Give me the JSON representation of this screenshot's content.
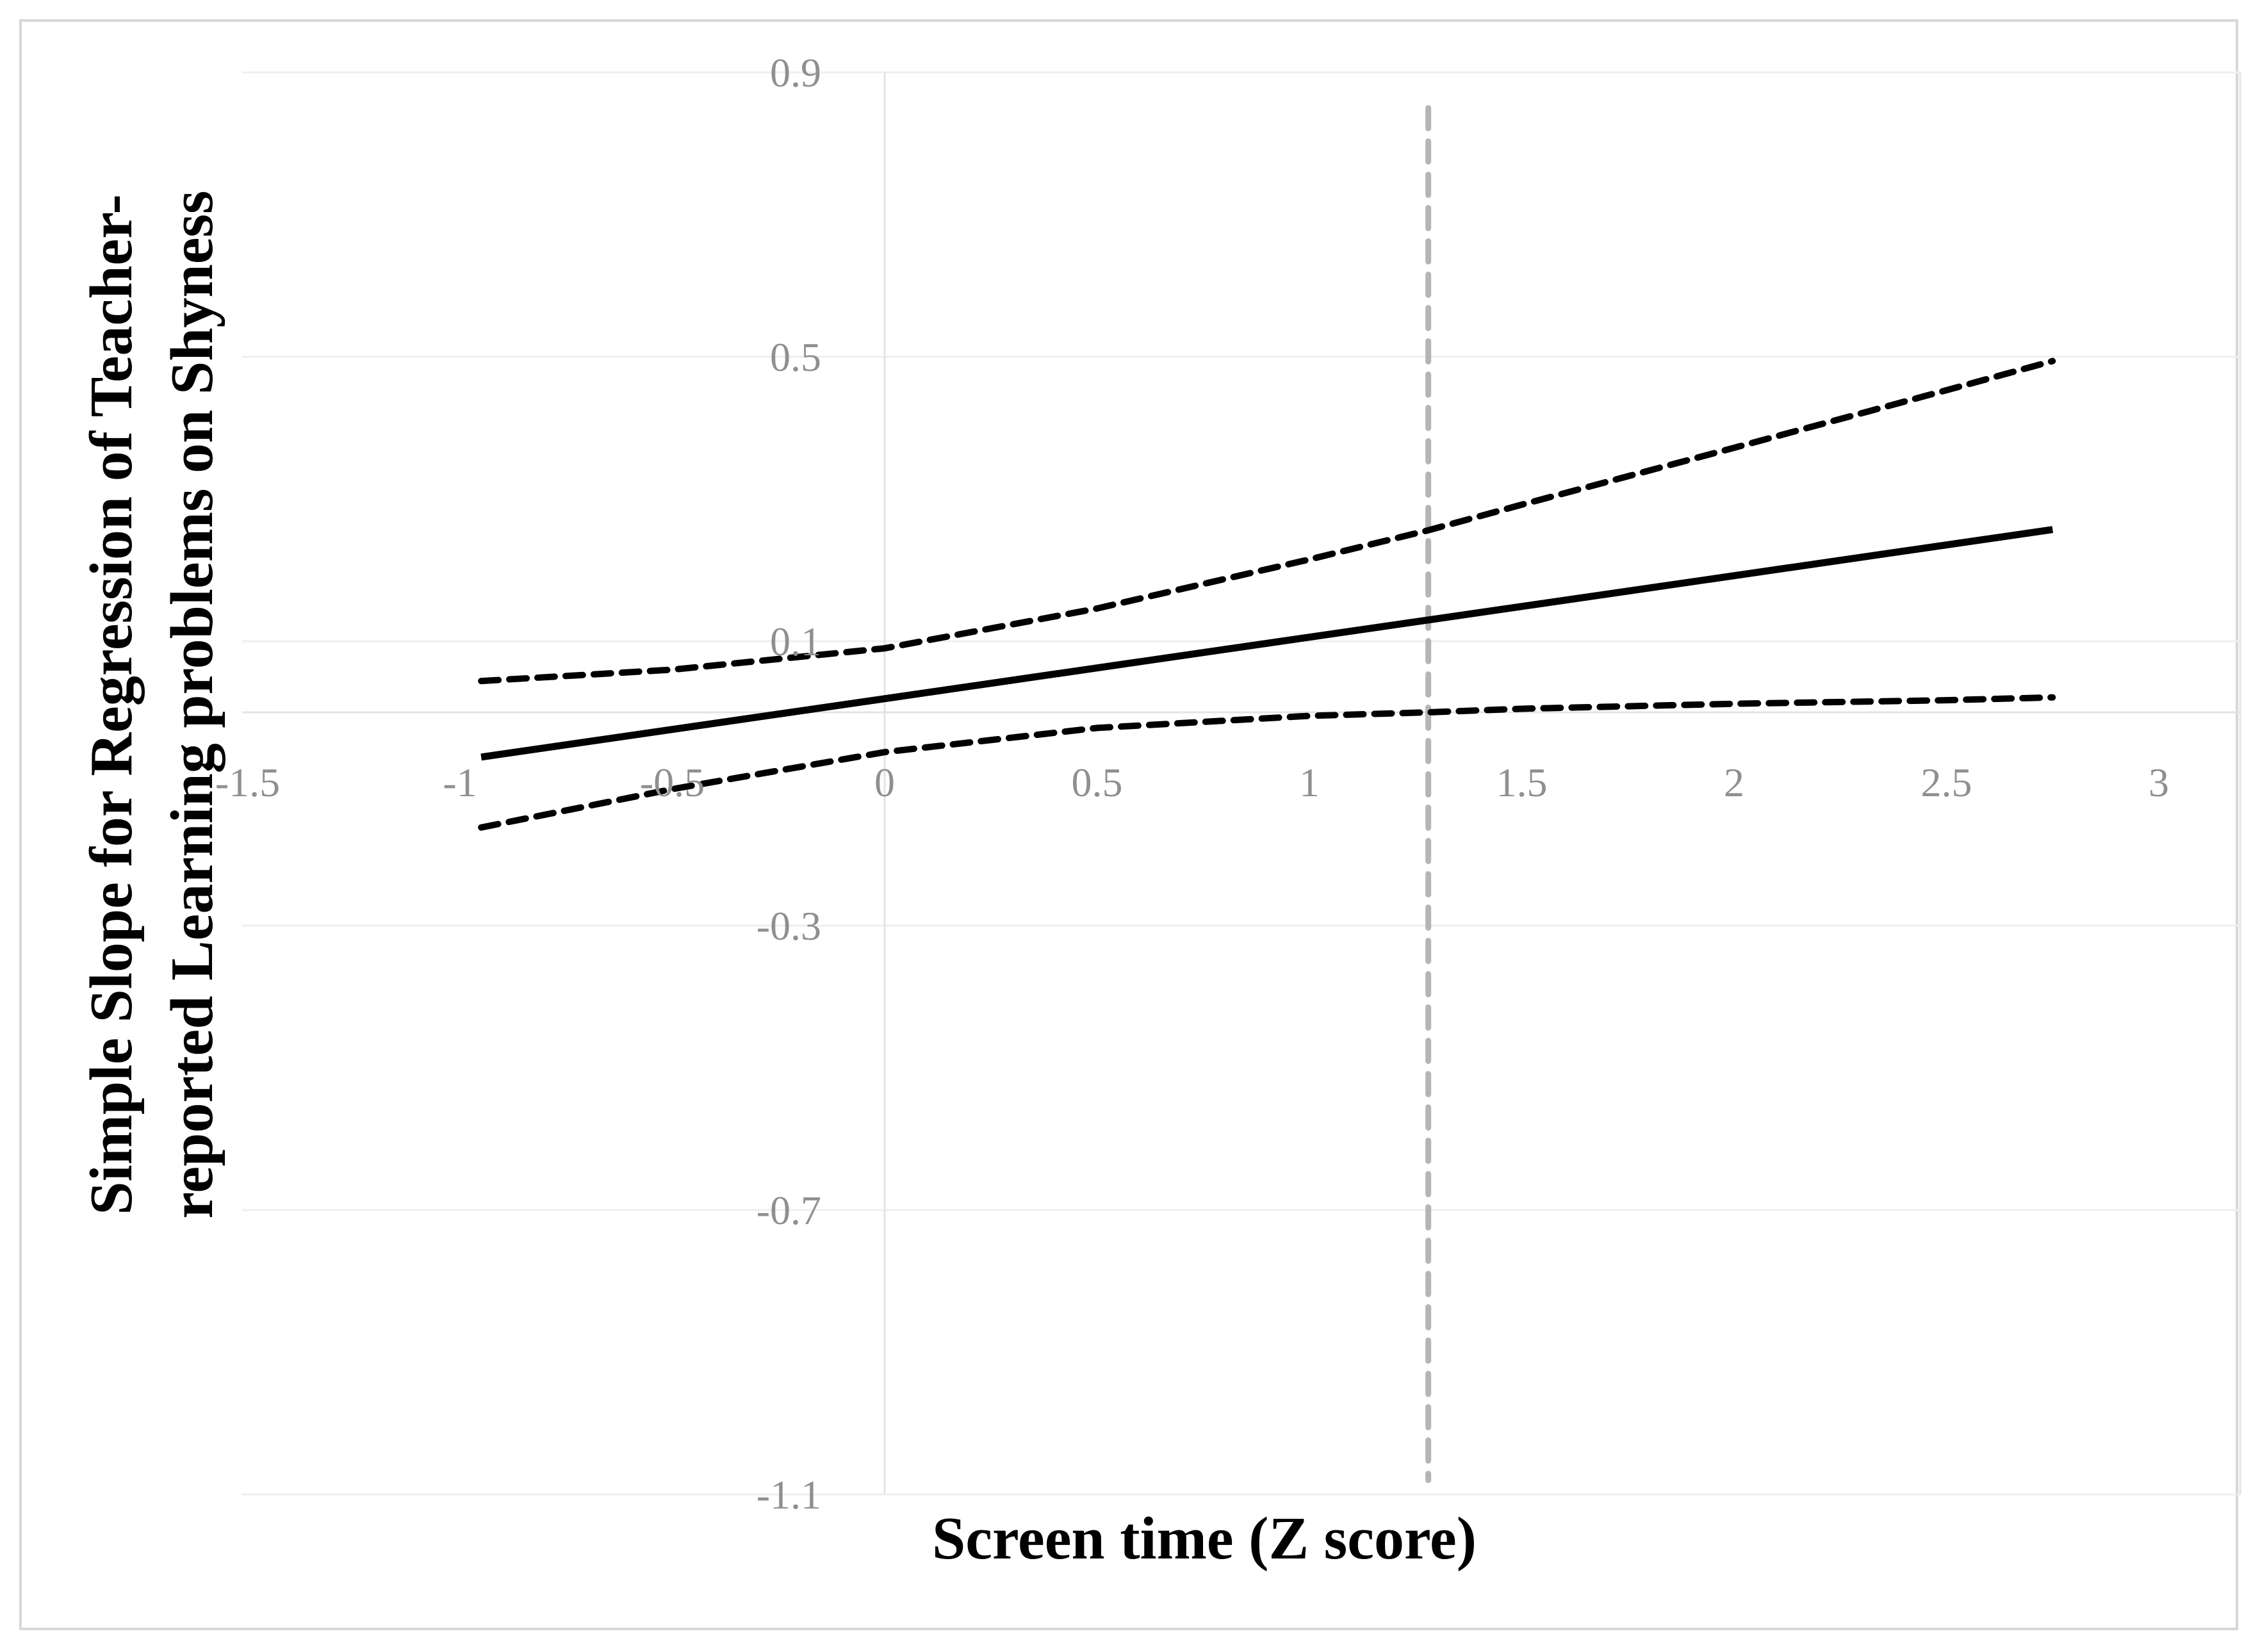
{
  "chart_data": {
    "type": "line",
    "title": "",
    "xlabel": "Screen time (Z score)",
    "ylabel_line1": "Simple Slope for Regression of Teacher-",
    "ylabel_line2": "reported Learning problems on Shyness",
    "xlim": [
      -1.51,
      3.19
    ],
    "ylim": [
      -1.1,
      0.9
    ],
    "grid": "horizontal-major",
    "legend": "none",
    "xticks": [
      {
        "value": -1.5,
        "label": "-1.5"
      },
      {
        "value": -1,
        "label": "-1"
      },
      {
        "value": -0.5,
        "label": "-0.5"
      },
      {
        "value": 0,
        "label": "0"
      },
      {
        "value": 0.5,
        "label": "0.5"
      },
      {
        "value": 1,
        "label": "1"
      },
      {
        "value": 1.5,
        "label": "1.5"
      },
      {
        "value": 2,
        "label": "2"
      },
      {
        "value": 2.5,
        "label": "2.5"
      },
      {
        "value": 3,
        "label": "3"
      }
    ],
    "yticks": [
      {
        "value": 0.9,
        "label": "0.9"
      },
      {
        "value": 0.5,
        "label": "0.5"
      },
      {
        "value": 0.1,
        "label": "0.1"
      },
      {
        "value": -0.3,
        "label": "-0.3"
      },
      {
        "value": -0.7,
        "label": "-0.7"
      },
      {
        "value": -1.1,
        "label": "-1.1"
      }
    ],
    "series": [
      {
        "name": "simple-slope",
        "style": "solid",
        "color": "#000000",
        "width": 11,
        "x": [
          -0.95,
          2.75
        ],
        "y": [
          -0.063,
          0.257
        ]
      },
      {
        "name": "upper-95-ci",
        "style": "dashed",
        "color": "#000000",
        "width": 10,
        "x": [
          -0.95,
          -0.5,
          0,
          0.5,
          1,
          1.28,
          1.5,
          2,
          2.5,
          2.75
        ],
        "y": [
          0.044,
          0.06,
          0.09,
          0.146,
          0.215,
          0.256,
          0.292,
          0.372,
          0.453,
          0.494
        ]
      },
      {
        "name": "lower-95-ci",
        "style": "dashed",
        "color": "#000000",
        "width": 10,
        "x": [
          -0.95,
          -0.5,
          0,
          0.5,
          1,
          1.28,
          1.5,
          2,
          2.5,
          2.75
        ],
        "y": [
          -0.162,
          -0.108,
          -0.056,
          -0.022,
          -0.005,
          0.0,
          0.005,
          0.012,
          0.017,
          0.021
        ]
      }
    ],
    "annotations": [
      {
        "name": "johnson-neyman-line",
        "type": "vline",
        "x": 1.28,
        "y_from": -1.08,
        "y_to": 0.85,
        "style": "dashed",
        "color": "#b5b5b5",
        "width": 9
      }
    ],
    "colors": {
      "tick_label": "#8f8f8f",
      "gridline": "#efefef",
      "axis_line": "#e4e4e4",
      "figure_border": "#d7d7d7",
      "title_text": "#000000"
    }
  }
}
